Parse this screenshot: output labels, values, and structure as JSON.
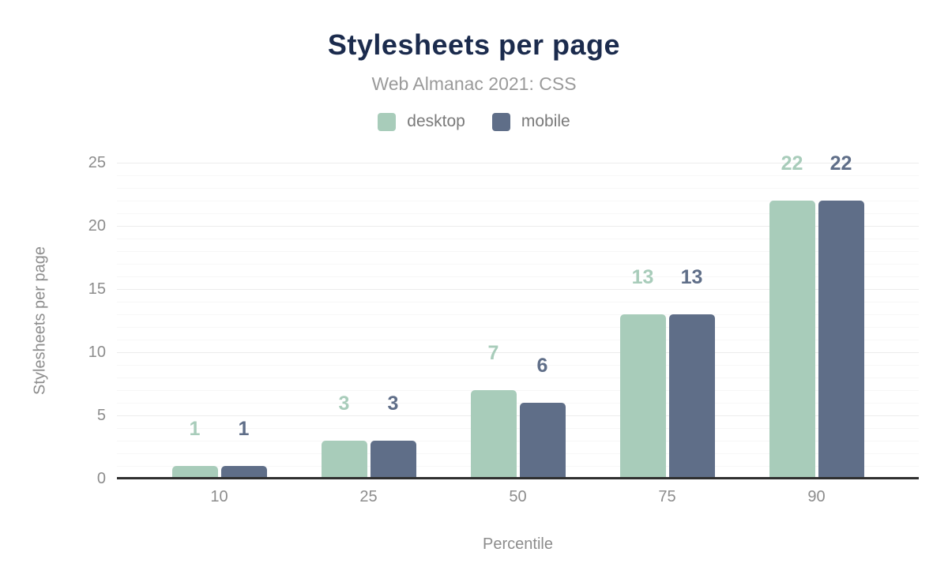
{
  "title": "Stylesheets per page",
  "subtitle": "Web Almanac 2021: CSS",
  "legend": [
    {
      "label": "desktop",
      "color": "#a8ccba"
    },
    {
      "label": "mobile",
      "color": "#5f6e88"
    }
  ],
  "chart_data": {
    "type": "bar",
    "title": "Stylesheets per page",
    "subtitle": "Web Almanac 2021: CSS",
    "categories": [
      "10",
      "25",
      "50",
      "75",
      "90"
    ],
    "series": [
      {
        "name": "desktop",
        "color": "#a8ccba",
        "values": [
          1,
          3,
          7,
          13,
          22
        ]
      },
      {
        "name": "mobile",
        "color": "#5f6e88",
        "values": [
          1,
          3,
          6,
          13,
          22
        ]
      }
    ],
    "xlabel": "Percentile",
    "ylabel": "Stylesheets per page",
    "ylim": [
      0,
      25
    ],
    "yticks": [
      0,
      5,
      10,
      15,
      20,
      25
    ],
    "grid": "horizontal, major every 5 with minor every 1",
    "legend_position": "top",
    "data_labels": true
  },
  "colors": {
    "title": "#1b2b4d",
    "subtitle": "#9a9a9a",
    "legend_text": "#7a7a7a",
    "axis_text": "#8c8c8c",
    "axis_line": "#2f2f2f",
    "grid_major": "#ececec",
    "grid_minor": "#f7f7f7",
    "desktop": "#a8ccba",
    "mobile": "#5f6e88",
    "background": "#ffffff"
  }
}
